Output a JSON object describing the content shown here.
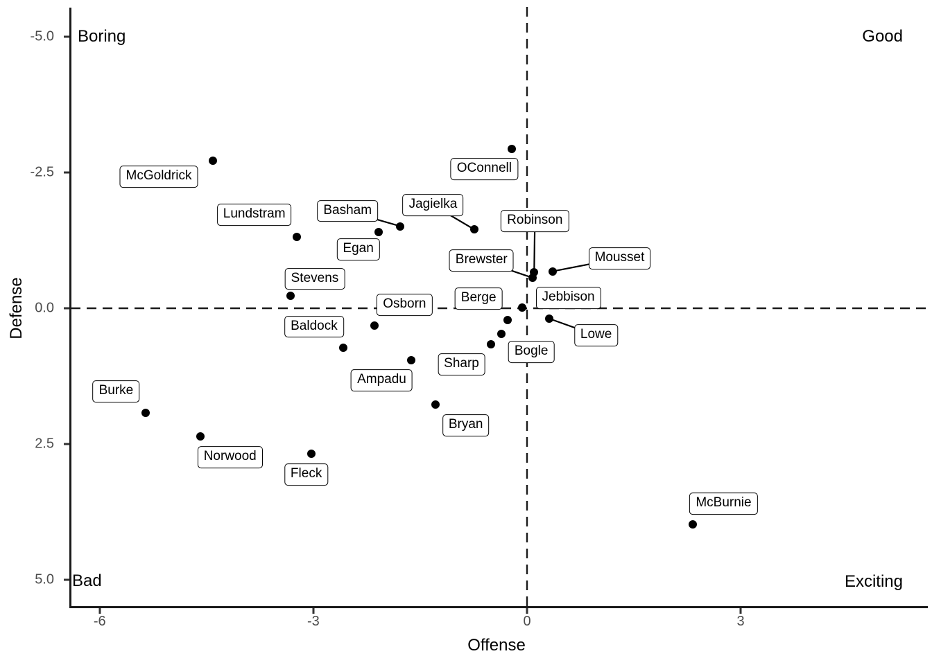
{
  "chart_data": {
    "type": "scatter",
    "title": "",
    "xlabel": "Offense",
    "ylabel": "Defense",
    "xlim": [
      -6.4,
      5.6
    ],
    "ylim": [
      5.5,
      -5.6
    ],
    "y_axis_reversed": true,
    "grid": false,
    "x_ticks": [
      -6,
      -3,
      0,
      3
    ],
    "x_tick_labels": [
      "-6",
      "-3",
      "0",
      "3"
    ],
    "y_ticks": [
      -5.0,
      -2.5,
      0.0,
      2.5,
      5.0
    ],
    "y_tick_labels": [
      "-5.0",
      "-2.5",
      "0.0",
      "2.5",
      "5.0"
    ],
    "reference_lines": {
      "vline_x": 0,
      "hline_y": 0,
      "style": "dashed",
      "color": "#000000"
    },
    "quadrant_labels": [
      {
        "text": "Boring",
        "corner": "top-left"
      },
      {
        "text": "Good",
        "corner": "top-right"
      },
      {
        "text": "Bad",
        "corner": "bottom-left"
      },
      {
        "text": "Exciting",
        "corner": "bottom-right"
      }
    ],
    "points": [
      {
        "name": "McGoldrick",
        "x": -4.41,
        "y": -2.72,
        "label_x": -5.17,
        "label_y": -2.42,
        "leader": false
      },
      {
        "name": "OConnell",
        "x": -0.21,
        "y": -2.93,
        "label_x": -0.6,
        "label_y": -2.56,
        "leader": false
      },
      {
        "name": "Jagielka",
        "x": -0.74,
        "y": -1.45,
        "label_x": -1.32,
        "label_y": -1.9,
        "leader": true
      },
      {
        "name": "Basham",
        "x": -1.78,
        "y": -1.51,
        "label_x": -2.52,
        "label_y": -1.79,
        "leader": true
      },
      {
        "name": "Egan",
        "x": -2.08,
        "y": -1.4,
        "label_x": -2.37,
        "label_y": -1.08,
        "leader": false
      },
      {
        "name": "Lundstram",
        "x": -3.23,
        "y": -1.31,
        "label_x": -3.83,
        "label_y": -1.72,
        "leader": false
      },
      {
        "name": "Stevens",
        "x": -3.32,
        "y": -0.23,
        "label_x": -2.98,
        "label_y": -0.54,
        "leader": false
      },
      {
        "name": "Osborn",
        "x": -2.14,
        "y": 0.32,
        "label_x": -1.72,
        "label_y": -0.06,
        "leader": false
      },
      {
        "name": "Baldock",
        "x": -2.58,
        "y": 0.73,
        "label_x": -2.99,
        "label_y": 0.34,
        "leader": false
      },
      {
        "name": "Ampadu",
        "x": -1.63,
        "y": 0.96,
        "label_x": -2.04,
        "label_y": 1.33,
        "leader": false
      },
      {
        "name": "Robinson",
        "x": 0.1,
        "y": -0.66,
        "label_x": 0.11,
        "label_y": -1.61,
        "leader": true
      },
      {
        "name": "Brewster",
        "x": 0.08,
        "y": -0.56,
        "label_x": -0.64,
        "label_y": -0.88,
        "leader": true
      },
      {
        "name": "Mousset",
        "x": 0.36,
        "y": -0.68,
        "label_x": 1.3,
        "label_y": -0.92,
        "leader": true
      },
      {
        "name": "Jebbison",
        "x": -0.07,
        "y": -0.01,
        "label_x": 0.58,
        "label_y": -0.19,
        "leader": false
      },
      {
        "name": "Berge",
        "x": -0.27,
        "y": 0.22,
        "label_x": -0.68,
        "label_y": -0.18,
        "leader": false
      },
      {
        "name": "Bogle",
        "x": -0.36,
        "y": 0.47,
        "label_x": 0.06,
        "label_y": 0.8,
        "leader": false
      },
      {
        "name": "Sharp",
        "x": -0.51,
        "y": 0.66,
        "label_x": -0.92,
        "label_y": 1.03,
        "leader": false
      },
      {
        "name": "Lowe",
        "x": 0.31,
        "y": 0.19,
        "label_x": 0.97,
        "label_y": 0.5,
        "leader": true
      },
      {
        "name": "Bryan",
        "x": -1.29,
        "y": 1.77,
        "label_x": -0.86,
        "label_y": 2.16,
        "leader": false
      },
      {
        "name": "Burke",
        "x": -5.36,
        "y": 1.93,
        "label_x": -5.77,
        "label_y": 1.53,
        "leader": false
      },
      {
        "name": "Norwood",
        "x": -4.59,
        "y": 2.36,
        "label_x": -4.17,
        "label_y": 2.74,
        "leader": false
      },
      {
        "name": "Fleck",
        "x": -3.03,
        "y": 2.68,
        "label_x": -3.1,
        "label_y": 3.06,
        "leader": false
      },
      {
        "name": "McBurnie",
        "x": 2.33,
        "y": 3.98,
        "label_x": 2.76,
        "label_y": 3.6,
        "leader": false
      }
    ]
  },
  "colors": {
    "background": "#ffffff",
    "point": "#000000",
    "label_border": "#000000",
    "axis_line": "#1a1a1a",
    "tick_label": "#4d4d4d",
    "annotation": "#000000"
  }
}
